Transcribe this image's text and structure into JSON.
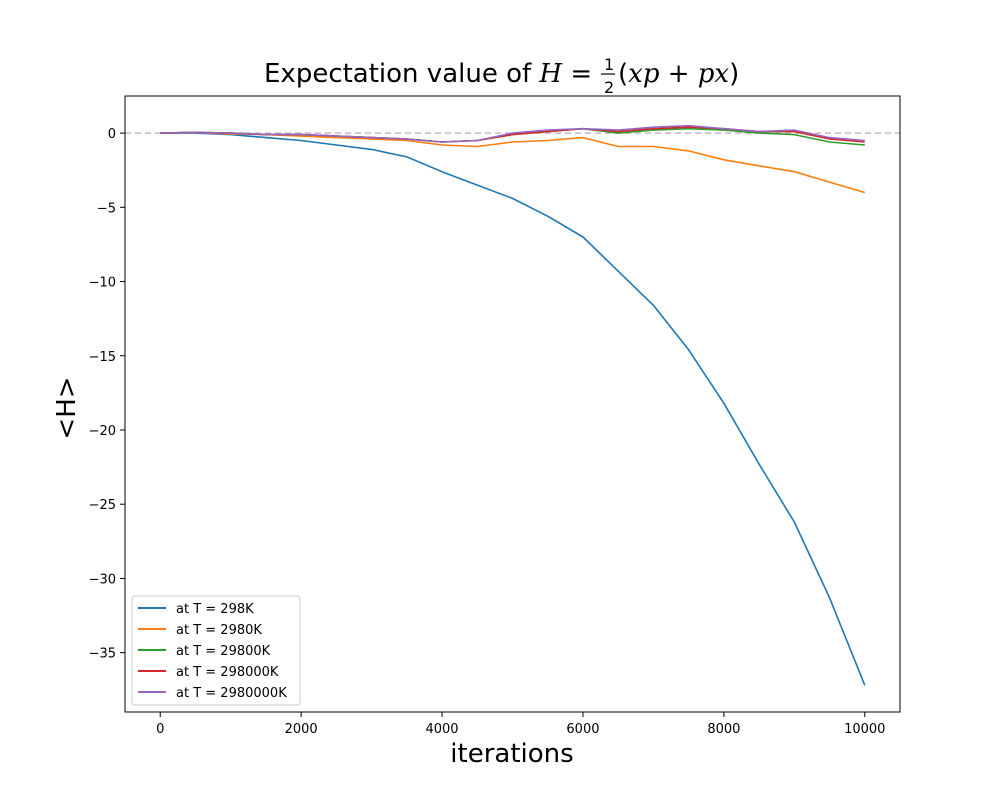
{
  "chart_data": {
    "type": "line",
    "title": {
      "prefix": "Expectation value  of ",
      "var": "H",
      "eq": " = ",
      "frac_num": "1",
      "frac_den": "2",
      "expr_open": "(",
      "expr_body": "xp + px",
      "expr_close": ")"
    },
    "xlabel": "iterations",
    "ylabel": "<H>",
    "xlim": [
      -500,
      10500
    ],
    "ylim": [
      -39,
      2.5
    ],
    "xticks": [
      0,
      2000,
      4000,
      6000,
      8000,
      10000
    ],
    "xtick_labels": [
      "0",
      "2000",
      "4000",
      "6000",
      "8000",
      "10000"
    ],
    "yticks": [
      0,
      -5,
      -10,
      -15,
      -20,
      -25,
      -30,
      -35
    ],
    "ytick_labels": [
      "0",
      "−5",
      "−10",
      "−15",
      "−20",
      "−25",
      "−30",
      "−35"
    ],
    "grid": false,
    "reference_line": {
      "y": 0,
      "style": "dashed",
      "color": "#c8b4c8"
    },
    "legend_position": "lower-left",
    "x": [
      0,
      500,
      1000,
      1500,
      2000,
      2500,
      3000,
      3500,
      4000,
      4500,
      5000,
      5500,
      6000,
      6500,
      7000,
      7500,
      8000,
      8500,
      9000,
      9500,
      10000
    ],
    "series": [
      {
        "name": "at T = 298K",
        "color": "#1f77b4",
        "values": [
          0,
          0,
          -0.1,
          -0.3,
          -0.5,
          -0.8,
          -1.1,
          -1.6,
          -2.6,
          -3.5,
          -4.4,
          -5.6,
          -7.0,
          -9.3,
          -11.6,
          -14.6,
          -18.2,
          -22.3,
          -26.2,
          -31.3,
          -37.2
        ]
      },
      {
        "name": "at T = 2980K",
        "color": "#ff7f0e",
        "values": [
          0,
          0.05,
          -0.05,
          -0.1,
          -0.2,
          -0.3,
          -0.4,
          -0.5,
          -0.8,
          -0.9,
          -0.6,
          -0.5,
          -0.3,
          -0.9,
          -0.9,
          -1.2,
          -1.8,
          -2.2,
          -2.6,
          -3.3,
          -4.0
        ]
      },
      {
        "name": "at T = 29800K",
        "color": "#2ca02c",
        "values": [
          0,
          0.05,
          0,
          -0.1,
          -0.1,
          -0.2,
          -0.3,
          -0.4,
          -0.6,
          -0.5,
          -0.1,
          0.1,
          0.3,
          0.0,
          0.2,
          0.3,
          0.2,
          0.0,
          -0.1,
          -0.6,
          -0.8
        ]
      },
      {
        "name": "at T = 298000K",
        "color": "#d62728",
        "values": [
          0,
          0.05,
          0,
          -0.1,
          -0.1,
          -0.2,
          -0.3,
          -0.4,
          -0.6,
          -0.5,
          -0.1,
          0.1,
          0.3,
          0.1,
          0.3,
          0.4,
          0.3,
          0.1,
          0.1,
          -0.4,
          -0.6
        ]
      },
      {
        "name": "at T = 2980000K",
        "color": "#9467bd",
        "values": [
          0,
          0.05,
          0,
          -0.1,
          -0.1,
          -0.2,
          -0.3,
          -0.4,
          -0.6,
          -0.5,
          0.0,
          0.2,
          0.3,
          0.2,
          0.4,
          0.5,
          0.3,
          0.1,
          0.2,
          -0.3,
          -0.5
        ]
      }
    ]
  }
}
